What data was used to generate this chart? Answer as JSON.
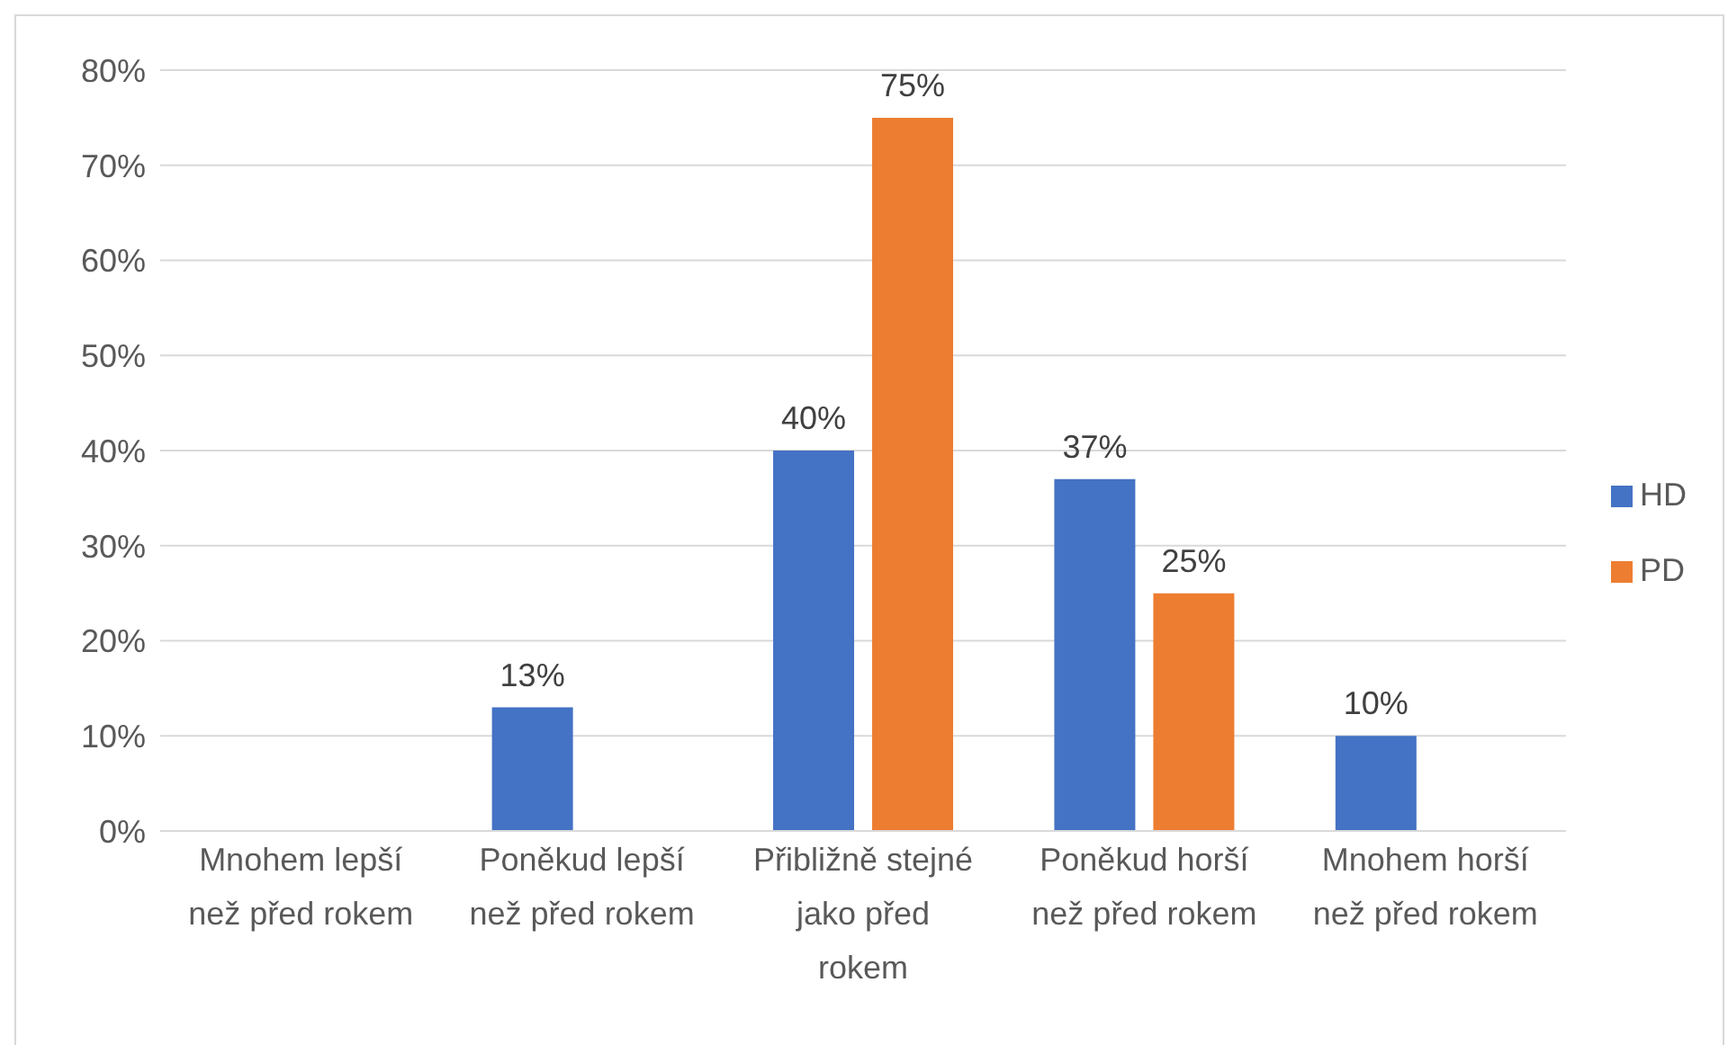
{
  "chart_data": {
    "type": "bar",
    "categories": [
      "Mnohem lepší než před rokem",
      "Poněkud lepší než před rokem",
      "Přibližně stejné jako před rokem",
      "Poněkud horší než před rokem",
      "Mnohem horší než před rokem"
    ],
    "series": [
      {
        "name": "HD",
        "color": "#4472c4",
        "values": [
          null,
          13,
          40,
          37,
          10
        ],
        "value_labels": [
          null,
          "13%",
          "40%",
          "37%",
          "10%"
        ]
      },
      {
        "name": "PD",
        "color": "#ed7d31",
        "values": [
          null,
          null,
          75,
          25,
          null
        ],
        "value_labels": [
          null,
          null,
          "75%",
          "25%",
          null
        ]
      }
    ],
    "ylim": [
      0,
      80
    ],
    "yticks": [
      {
        "value": 0,
        "label": "0%"
      },
      {
        "value": 10,
        "label": "10%"
      },
      {
        "value": 20,
        "label": "20%"
      },
      {
        "value": 30,
        "label": "30%"
      },
      {
        "value": 40,
        "label": "40%"
      },
      {
        "value": 50,
        "label": "50%"
      },
      {
        "value": 60,
        "label": "60%"
      },
      {
        "value": 70,
        "label": "70%"
      },
      {
        "value": 80,
        "label": "80%"
      }
    ],
    "grid": "y",
    "legend": "right"
  }
}
